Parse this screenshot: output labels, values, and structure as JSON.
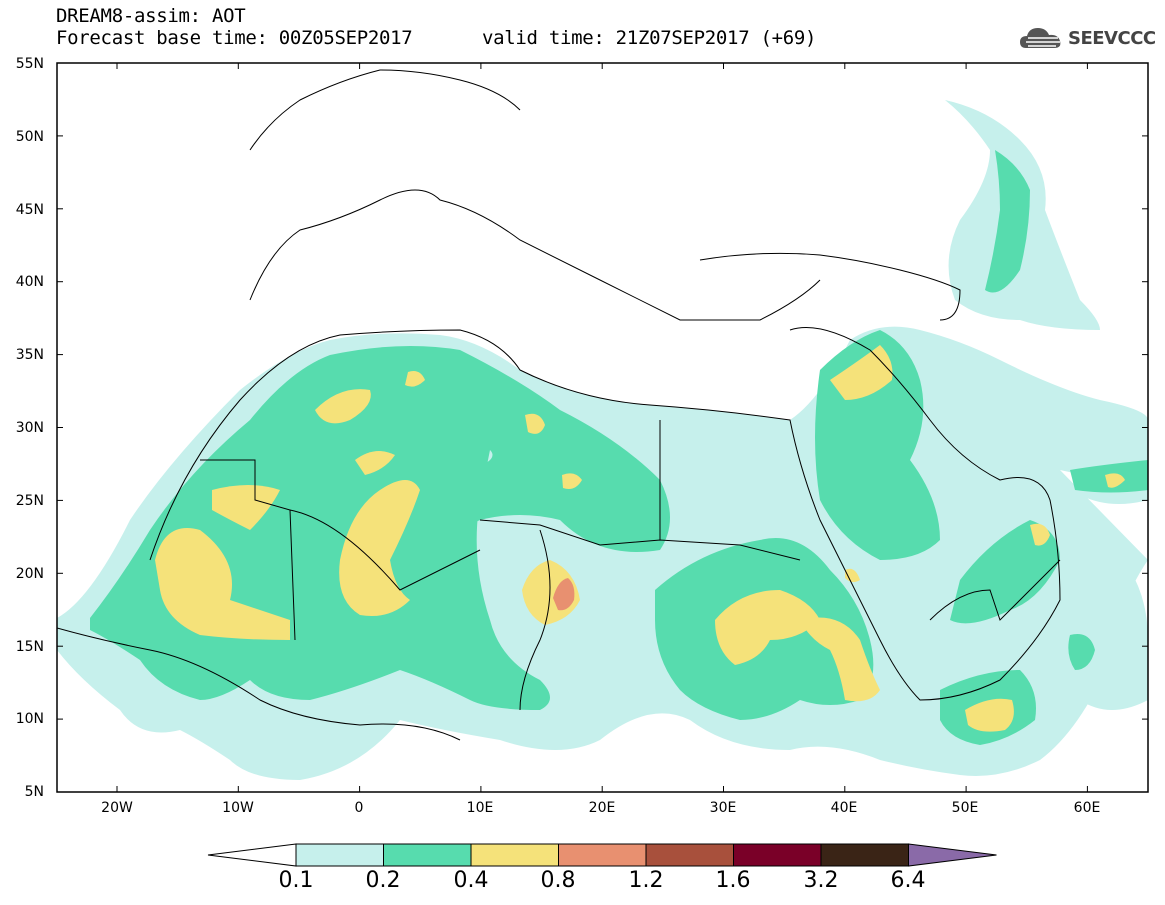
{
  "header": {
    "title_line1": "DREAM8-assim: AOT",
    "base_time": "Forecast base time: 00Z05SEP2017",
    "valid_time": "valid time: 21Z07SEP2017 (+69)",
    "logo_text": "SEEVCCC"
  },
  "axes": {
    "lat_labels": [
      "55N",
      "50N",
      "45N",
      "40N",
      "35N",
      "30N",
      "25N",
      "20N",
      "15N",
      "10N",
      "5N"
    ],
    "lon_labels": [
      "20W",
      "10W",
      "0",
      "10E",
      "20E",
      "30E",
      "40E",
      "50E",
      "60E"
    ]
  },
  "legend": {
    "levels": [
      "0.1",
      "0.2",
      "0.4",
      "0.8",
      "1.2",
      "1.6",
      "3.2",
      "6.4"
    ],
    "colors": [
      "#ffffff",
      "#c6f0ec",
      "#57dcae",
      "#f5e27a",
      "#e89070",
      "#a8503c",
      "#7a0028",
      "#3a2416",
      "#8a6aa8"
    ]
  },
  "colors": {
    "aot_0_1": "#c6f0ec",
    "aot_0_2": "#57dcae",
    "aot_0_4": "#f5e27a",
    "aot_0_8": "#e89070"
  }
}
